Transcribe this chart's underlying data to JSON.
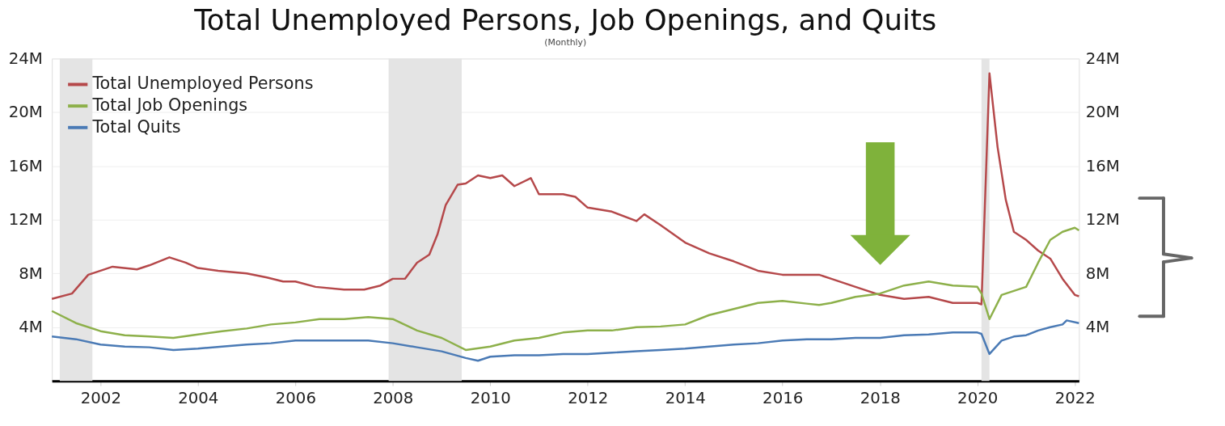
{
  "chart_data": {
    "type": "line",
    "title": "Total Unemployed Persons, Job Openings, and Quits",
    "subtitle": "(Monthly)",
    "xlim": [
      "2001-01",
      "2022-02"
    ],
    "xticks": [
      "2002",
      "2004",
      "2006",
      "2008",
      "2010",
      "2012",
      "2014",
      "2016",
      "2018",
      "2020",
      "2022"
    ],
    "ylim": [
      0,
      24000000
    ],
    "yticks": [
      {
        "value": 4000000,
        "label": "4M"
      },
      {
        "value": 8000000,
        "label": "8M"
      },
      {
        "value": 12000000,
        "label": "12M"
      },
      {
        "value": 16000000,
        "label": "16M"
      },
      {
        "value": 20000000,
        "label": "20M"
      },
      {
        "value": 24000000,
        "label": "24M"
      }
    ],
    "y2lim": [
      0,
      24000000
    ],
    "y2ticks": [
      {
        "value": 4000000,
        "label": "4M"
      },
      {
        "value": 8000000,
        "label": "8M"
      },
      {
        "value": 12000000,
        "label": "12M"
      },
      {
        "value": 16000000,
        "label": "16M"
      },
      {
        "value": 20000000,
        "label": "20M"
      },
      {
        "value": 24000000,
        "label": "24M"
      }
    ],
    "grid": "y",
    "legend": "top left",
    "line_style": "solid",
    "marker": "none",
    "bands": [
      {
        "axis": "x",
        "from": "2001-03",
        "to": "2001-11",
        "color": "#e4e4e4"
      },
      {
        "axis": "x",
        "from": "2007-12",
        "to": "2009-06",
        "color": "#e4e4e4"
      },
      {
        "axis": "x",
        "from": "2020-02",
        "to": "2020-04",
        "color": "#e4e4e4"
      }
    ],
    "series": [
      {
        "name": "Total Unemployed Persons",
        "color": "#b5484a",
        "x": [
          "2001-01",
          "2001-06",
          "2001-10",
          "2002-01",
          "2002-04",
          "2002-10",
          "2003-01",
          "2003-06",
          "2003-10",
          "2004-01",
          "2004-06",
          "2005-01",
          "2005-06",
          "2005-10",
          "2006-01",
          "2006-06",
          "2007-01",
          "2007-06",
          "2007-10",
          "2008-01",
          "2008-04",
          "2008-07",
          "2008-10",
          "2008-12",
          "2009-02",
          "2009-05",
          "2009-07",
          "2009-10",
          "2010-01",
          "2010-04",
          "2010-07",
          "2010-11",
          "2011-01",
          "2011-07",
          "2011-10",
          "2012-01",
          "2012-07",
          "2013-01",
          "2013-03",
          "2013-07",
          "2014-01",
          "2014-07",
          "2015-01",
          "2015-07",
          "2016-01",
          "2016-07",
          "2016-10",
          "2017-01",
          "2017-07",
          "2018-01",
          "2018-07",
          "2019-01",
          "2019-07",
          "2020-01",
          "2020-02",
          "2020-04",
          "2020-06",
          "2020-08",
          "2020-10",
          "2021-01",
          "2021-04",
          "2021-07",
          "2021-10",
          "2022-01",
          "2022-02"
        ],
        "values": [
          6100000,
          6500000,
          7900000,
          8200000,
          8500000,
          8300000,
          8600000,
          9200000,
          8800000,
          8400000,
          8200000,
          8000000,
          7700000,
          7400000,
          7400000,
          7000000,
          6800000,
          6800000,
          7100000,
          7600000,
          7600000,
          8800000,
          9400000,
          10900000,
          13100000,
          14600000,
          14700000,
          15300000,
          15100000,
          15300000,
          14500000,
          15100000,
          13900000,
          13900000,
          13700000,
          12900000,
          12600000,
          11900000,
          12400000,
          11600000,
          10300000,
          9500000,
          8900000,
          8200000,
          7900000,
          7900000,
          7900000,
          7600000,
          7000000,
          6400000,
          6100000,
          6250000,
          5800000,
          5800000,
          5700000,
          22900000,
          17400000,
          13500000,
          11100000,
          10500000,
          9700000,
          9100000,
          7600000,
          6400000,
          6300000
        ]
      },
      {
        "name": "Total Job Openings",
        "color": "#8db04a",
        "x": [
          "2001-01",
          "2001-07",
          "2002-01",
          "2002-07",
          "2003-01",
          "2003-07",
          "2004-01",
          "2004-07",
          "2005-01",
          "2005-07",
          "2006-01",
          "2006-07",
          "2007-01",
          "2007-07",
          "2008-01",
          "2008-07",
          "2009-01",
          "2009-07",
          "2010-01",
          "2010-07",
          "2011-01",
          "2011-07",
          "2012-01",
          "2012-07",
          "2013-01",
          "2013-07",
          "2014-01",
          "2014-07",
          "2015-01",
          "2015-07",
          "2016-01",
          "2016-07",
          "2016-10",
          "2017-01",
          "2017-07",
          "2018-01",
          "2018-07",
          "2019-01",
          "2019-07",
          "2020-01",
          "2020-02",
          "2020-04",
          "2020-07",
          "2020-10",
          "2021-01",
          "2021-04",
          "2021-07",
          "2021-10",
          "2022-01",
          "2022-02"
        ],
        "values": [
          5200000,
          4300000,
          3700000,
          3400000,
          3300000,
          3200000,
          3450000,
          3700000,
          3900000,
          4200000,
          4350000,
          4600000,
          4600000,
          4750000,
          4600000,
          3750000,
          3200000,
          2300000,
          2550000,
          3000000,
          3200000,
          3600000,
          3750000,
          3750000,
          4000000,
          4050000,
          4200000,
          4900000,
          5350000,
          5800000,
          5950000,
          5750000,
          5650000,
          5800000,
          6250000,
          6500000,
          7100000,
          7400000,
          7100000,
          7000000,
          6500000,
          4600000,
          6400000,
          6700000,
          7000000,
          8800000,
          10500000,
          11100000,
          11400000,
          11200000
        ]
      },
      {
        "name": "Total Quits",
        "color": "#4a7ab5",
        "x": [
          "2001-01",
          "2001-07",
          "2002-01",
          "2002-07",
          "2003-01",
          "2003-07",
          "2004-01",
          "2004-07",
          "2005-01",
          "2005-07",
          "2006-01",
          "2006-07",
          "2007-01",
          "2007-07",
          "2008-01",
          "2008-07",
          "2009-01",
          "2009-07",
          "2009-10",
          "2010-01",
          "2010-07",
          "2011-01",
          "2011-07",
          "2012-01",
          "2012-07",
          "2013-01",
          "2013-07",
          "2014-01",
          "2014-07",
          "2015-01",
          "2015-07",
          "2016-01",
          "2016-07",
          "2017-01",
          "2017-07",
          "2018-01",
          "2018-07",
          "2019-01",
          "2019-07",
          "2020-01",
          "2020-02",
          "2020-04",
          "2020-07",
          "2020-10",
          "2021-01",
          "2021-04",
          "2021-07",
          "2021-10",
          "2021-11",
          "2022-02"
        ],
        "values": [
          3300000,
          3100000,
          2700000,
          2550000,
          2500000,
          2300000,
          2400000,
          2550000,
          2700000,
          2800000,
          3000000,
          3000000,
          3000000,
          3000000,
          2800000,
          2500000,
          2200000,
          1700000,
          1500000,
          1800000,
          1900000,
          1900000,
          2000000,
          2000000,
          2100000,
          2200000,
          2300000,
          2400000,
          2550000,
          2700000,
          2800000,
          3000000,
          3100000,
          3100000,
          3200000,
          3200000,
          3400000,
          3450000,
          3600000,
          3600000,
          3500000,
          2000000,
          3000000,
          3300000,
          3400000,
          3750000,
          4000000,
          4200000,
          4500000,
          4300000
        ]
      }
    ]
  }
}
